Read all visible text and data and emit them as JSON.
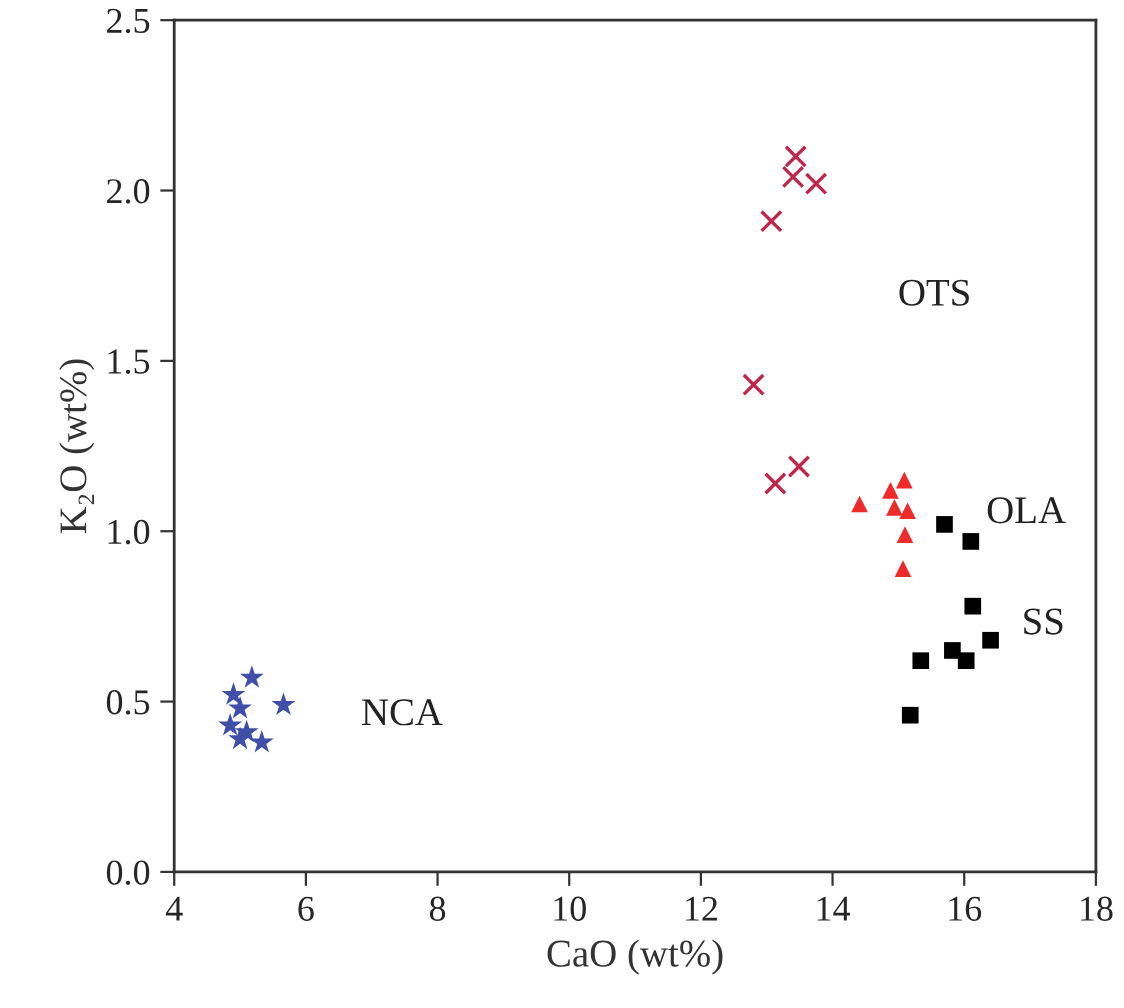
{
  "chart_data": {
    "type": "scatter",
    "xlabel": "CaO (wt%)",
    "ylabel": "K₂O (wt%)",
    "xlim": [
      4,
      18
    ],
    "xticks": [
      4,
      6,
      8,
      10,
      12,
      14,
      16,
      18
    ],
    "ylim": [
      0,
      2.5
    ],
    "yticks": [
      {
        "value": 0,
        "label": "0.0"
      },
      0.5,
      {
        "value": 1,
        "label": "1.0"
      },
      1.5,
      {
        "value": 2,
        "label": "2.0"
      },
      2.5
    ],
    "grid": false,
    "legend": false,
    "series": [
      {
        "name": "OTS",
        "marker": "cross",
        "color": "#c0264a",
        "x": [
          13.44,
          13.4,
          13.75,
          13.07,
          12.8,
          13.13,
          13.49
        ],
        "values": [
          2.1,
          2.04,
          2.02,
          1.91,
          1.43,
          1.14,
          1.19
        ]
      },
      {
        "name": "OLA",
        "marker": "triangle",
        "color": "#ee2a2a",
        "x": [
          14.41,
          14.88,
          15.09,
          14.94,
          15.14,
          15.1,
          15.07
        ],
        "values": [
          1.08,
          1.12,
          1.15,
          1.07,
          1.06,
          0.99,
          0.89
        ]
      },
      {
        "name": "SS",
        "marker": "square",
        "color": "#000000",
        "x": [
          15.7,
          16.1,
          16.13,
          16.4,
          15.82,
          16.03,
          15.34,
          15.18
        ],
        "values": [
          1.02,
          0.97,
          0.78,
          0.68,
          0.65,
          0.62,
          0.62,
          0.46
        ]
      },
      {
        "name": "NCA",
        "marker": "star",
        "color": "#3f4fa8",
        "x": [
          5.18,
          4.9,
          5.0,
          5.66,
          4.85,
          5.1,
          5.0,
          5.33
        ],
        "values": [
          0.57,
          0.52,
          0.48,
          0.49,
          0.43,
          0.41,
          0.39,
          0.38
        ]
      }
    ]
  }
}
